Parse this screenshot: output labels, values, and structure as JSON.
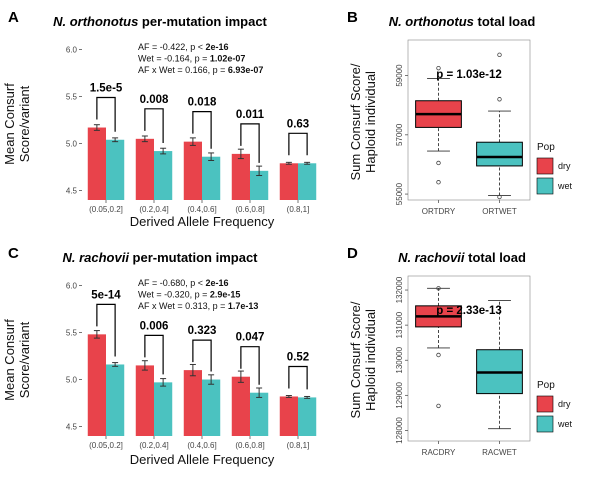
{
  "colors": {
    "dry": "#E8434B",
    "wet": "#4BC2C0",
    "bracket": "#000000",
    "axis": "#555555"
  },
  "chart_data": [
    {
      "id": "A",
      "type": "bar",
      "panel_letter": "A",
      "title_italic": "N. orthonotus",
      "title_rest": " per-mutation impact",
      "xlabel": "Derived Allele Frequency",
      "ylabel_line1": "Mean Consurf",
      "ylabel_line2": "Score/variant",
      "categories": [
        "(0.05,0.2]",
        "(0.2,0.4]",
        "(0.4,0.6]",
        "(0.6,0.8]",
        "(0.8,1]"
      ],
      "ylim": [
        4.4,
        6.1
      ],
      "yticks": [
        "4.5",
        "5.0",
        "5.5",
        "6.0"
      ],
      "ytick_values": [
        4.5,
        5.0,
        5.5,
        6.0
      ],
      "series": [
        {
          "name": "dry",
          "values": [
            5.17,
            5.05,
            5.02,
            4.89,
            4.79
          ],
          "errors": [
            0.03,
            0.03,
            0.04,
            0.05,
            0.01
          ]
        },
        {
          "name": "wet",
          "values": [
            5.04,
            4.92,
            4.86,
            4.71,
            4.79
          ],
          "errors": [
            0.02,
            0.03,
            0.04,
            0.05,
            0.01
          ]
        }
      ],
      "pvalues": [
        {
          "text": "1.5e-5",
          "bold": true
        },
        {
          "text": "0.008",
          "bold": true
        },
        {
          "text": "0.018",
          "bold": true
        },
        {
          "text": "0.011",
          "bold": true
        },
        {
          "text": "0.63",
          "bold": false
        }
      ],
      "stats": [
        {
          "plain": "AF = -0.422, p < ",
          "bold": "2e-16"
        },
        {
          "plain": "Wet = -0.164, p = ",
          "bold": "1.02e-07"
        },
        {
          "plain": "AF x Wet = 0.166, p = ",
          "bold": "6.93e-07"
        }
      ]
    },
    {
      "id": "B",
      "type": "box",
      "panel_letter": "B",
      "title_italic": "N. orthonotus",
      "title_rest": " total load",
      "ylabel_line1": "Sum Consurf Score/",
      "ylabel_line2": "Haploid individual",
      "categories": [
        "ORTDRY",
        "ORTWET"
      ],
      "ylim": [
        54800,
        60200
      ],
      "yticks": [
        "55000",
        "57000",
        "59000"
      ],
      "ytick_values": [
        55000,
        57000,
        59000
      ],
      "pvalue": "p = 1.03e-12",
      "boxes": [
        {
          "category": "ORTDRY",
          "group": "dry",
          "whisker_low": 56450,
          "q1": 57250,
          "median": 57700,
          "q3": 58150,
          "whisker_high": 58900,
          "outliers": [
            55400,
            56050,
            59250
          ]
        },
        {
          "category": "ORTWET",
          "group": "wet",
          "whisker_low": 54950,
          "q1": 55950,
          "median": 56250,
          "q3": 56750,
          "whisker_high": 57800,
          "outliers": [
            54500,
            58200,
            59700
          ]
        }
      ],
      "legend": {
        "title": "Pop",
        "items": [
          "dry",
          "wet"
        ]
      }
    },
    {
      "id": "C",
      "type": "bar",
      "panel_letter": "C",
      "title_italic": "N. rachovii",
      "title_rest": " per-mutation impact",
      "xlabel": "Derived Allele Frequency",
      "ylabel_line1": "Mean Consurf",
      "ylabel_line2": "Score/variant",
      "categories": [
        "(0.05,0.2]",
        "(0.2,0.4]",
        "(0.4,0.6]",
        "(0.6,0.8]",
        "(0.8,1]"
      ],
      "ylim": [
        4.4,
        6.1
      ],
      "yticks": [
        "4.5",
        "5.0",
        "5.5",
        "6.0"
      ],
      "ytick_values": [
        4.5,
        5.0,
        5.5,
        6.0
      ],
      "series": [
        {
          "name": "dry",
          "values": [
            5.48,
            5.15,
            5.1,
            5.03,
            4.82
          ],
          "errors": [
            0.04,
            0.05,
            0.06,
            0.06,
            0.01
          ]
        },
        {
          "name": "wet",
          "values": [
            5.16,
            4.97,
            5.0,
            4.86,
            4.81
          ],
          "errors": [
            0.02,
            0.04,
            0.05,
            0.05,
            0.01
          ]
        }
      ],
      "pvalues": [
        {
          "text": "5e-14",
          "bold": true
        },
        {
          "text": "0.006",
          "bold": true
        },
        {
          "text": "0.323",
          "bold": false
        },
        {
          "text": "0.047",
          "bold": true
        },
        {
          "text": "0.52",
          "bold": false
        }
      ],
      "stats": [
        {
          "plain": "AF = -0.680, p < ",
          "bold": "2e-16"
        },
        {
          "plain": "Wet = -0.320, p = ",
          "bold": "2.9e-15"
        },
        {
          "plain": "AF x Wet = 0.313, p = ",
          "bold": "1.7e-13"
        }
      ]
    },
    {
      "id": "D",
      "type": "box",
      "panel_letter": "D",
      "title_italic": "N. rachovii",
      "title_rest": " total load",
      "ylabel_line1": "Sum Consurf Score/",
      "ylabel_line2": "Haploid individual",
      "categories": [
        "RACDRY",
        "RACWET"
      ],
      "ylim": [
        127700,
        132400
      ],
      "yticks": [
        "128000",
        "129000",
        "130000",
        "131000",
        "132000"
      ],
      "ytick_values": [
        128000,
        129000,
        130000,
        131000,
        132000
      ],
      "pvalue": "p = 2.33e-13",
      "boxes": [
        {
          "category": "RACDRY",
          "group": "dry",
          "whisker_low": 130350,
          "q1": 130950,
          "median": 131250,
          "q3": 131550,
          "whisker_high": 132050,
          "outliers": [
            128700,
            130150,
            132050
          ]
        },
        {
          "category": "RACWET",
          "group": "wet",
          "whisker_low": 128050,
          "q1": 129050,
          "median": 129650,
          "q3": 130300,
          "whisker_high": 131700,
          "outliers": []
        }
      ],
      "legend": {
        "title": "Pop",
        "items": [
          "dry",
          "wet"
        ]
      }
    }
  ]
}
